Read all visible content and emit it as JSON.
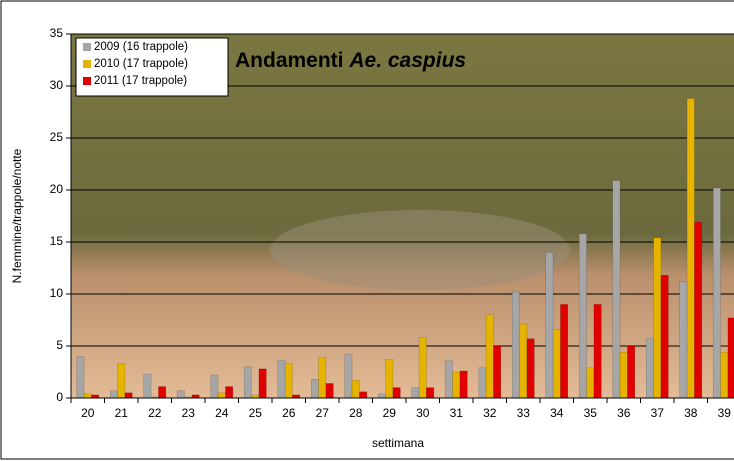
{
  "chart_data": {
    "type": "bar",
    "title": {
      "text": "Andamenti",
      "italic": "Ae. caspius"
    },
    "x_label": "settimana",
    "y_label": "N.femmine/trappole/notte",
    "categories": [
      "20",
      "21",
      "22",
      "23",
      "24",
      "25",
      "26",
      "27",
      "28",
      "29",
      "30",
      "31",
      "32",
      "33",
      "34",
      "35",
      "36",
      "37",
      "38",
      "39"
    ],
    "series": [
      {
        "name": "2009 (16 trappole)",
        "color": "#a6a6a6",
        "values": [
          4.0,
          0.7,
          2.3,
          0.7,
          2.2,
          3.0,
          3.6,
          1.8,
          4.2,
          0.4,
          1.0,
          3.6,
          2.9,
          10.2,
          14.0,
          15.8,
          20.9,
          5.7,
          11.2,
          20.2
        ]
      },
      {
        "name": "2010 (17 trappole)",
        "color": "#e6b400",
        "values": [
          0.4,
          3.3,
          0.1,
          0.1,
          0.5,
          0.3,
          3.3,
          3.9,
          1.7,
          3.7,
          5.8,
          2.5,
          8.0,
          7.1,
          6.6,
          2.9,
          4.4,
          15.4,
          28.8,
          4.4
        ]
      },
      {
        "name": "2011 (17 trappole)",
        "color": "#e00000",
        "values": [
          0.3,
          0.5,
          1.1,
          0.3,
          1.1,
          2.8,
          0.3,
          1.4,
          0.6,
          1.0,
          1.0,
          2.6,
          5.0,
          5.7,
          9.0,
          9.0,
          5.0,
          11.8,
          16.9,
          7.7
        ]
      }
    ],
    "ylim": [
      0,
      35
    ],
    "yticks": [
      0,
      5,
      10,
      15,
      20,
      25,
      30,
      35
    ],
    "grid": true
  }
}
